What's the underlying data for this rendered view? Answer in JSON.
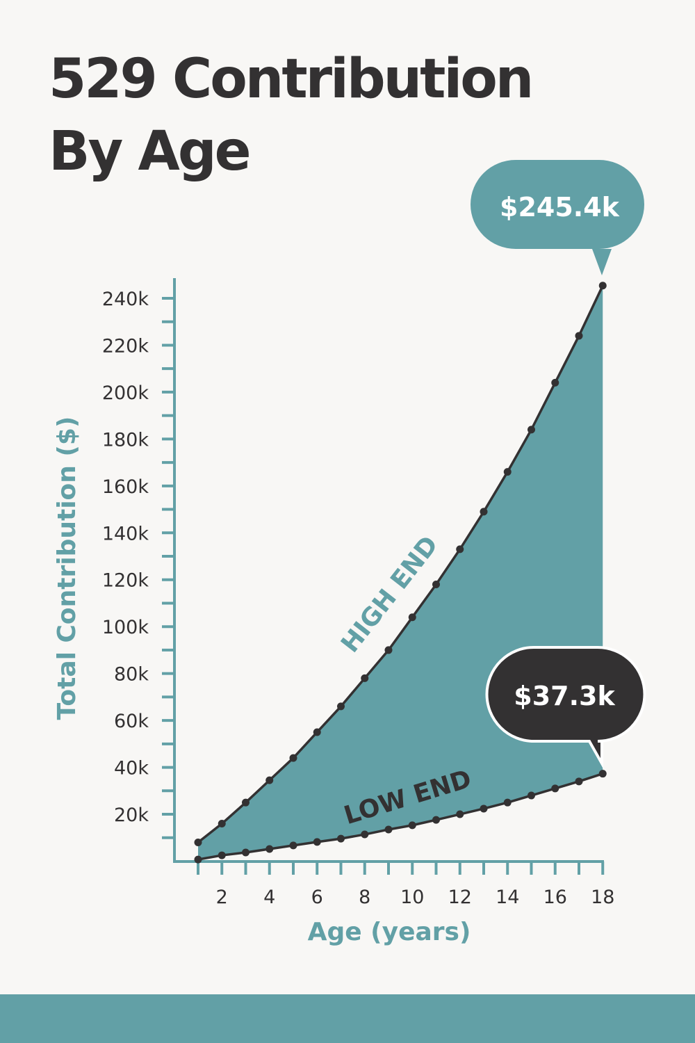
{
  "title": {
    "line1": "529 Contribution",
    "line2": "By Age"
  },
  "colors": {
    "background": "#f8f7f5",
    "teal": "#62a0a6",
    "dark": "#333132",
    "white": "#ffffff"
  },
  "callouts": {
    "high": "$245.4k",
    "low": "$37.3k"
  },
  "chart_data": {
    "type": "area",
    "title": "529 Contribution By Age",
    "xlabel": "Age (years)",
    "ylabel": "Total Contribution ($)",
    "x": [
      1,
      2,
      3,
      4,
      5,
      6,
      7,
      8,
      9,
      10,
      11,
      12,
      13,
      14,
      15,
      16,
      17,
      18
    ],
    "x_tick_labels": [
      "2",
      "4",
      "6",
      "8",
      "10",
      "12",
      "14",
      "16",
      "18"
    ],
    "x_ticks": [
      2,
      4,
      6,
      8,
      10,
      12,
      14,
      16,
      18
    ],
    "y_tick_labels": [
      "20k",
      "40k",
      "60k",
      "80k",
      "100k",
      "120k",
      "140k",
      "160k",
      "180k",
      "200k",
      "220k",
      "240k"
    ],
    "y_ticks": [
      20000,
      40000,
      60000,
      80000,
      100000,
      120000,
      140000,
      160000,
      180000,
      200000,
      220000,
      240000
    ],
    "ylim": [
      0,
      245400
    ],
    "xlim": [
      1,
      18
    ],
    "grid": false,
    "legend": "none (inline labels)",
    "series": [
      {
        "name": "HIGH END",
        "values": [
          8000,
          16000,
          25000,
          34500,
          44000,
          55000,
          66000,
          78000,
          90000,
          104000,
          118000,
          133000,
          149000,
          166000,
          184000,
          204000,
          224000,
          245400
        ]
      },
      {
        "name": "LOW END",
        "values": [
          700,
          2500,
          3700,
          5200,
          6700,
          8200,
          9600,
          11400,
          13500,
          15300,
          17600,
          20000,
          22400,
          25000,
          28000,
          31000,
          34000,
          37300
        ]
      }
    ],
    "annotations": [
      {
        "x": 18,
        "series": "HIGH END",
        "text": "$245.4k"
      },
      {
        "x": 18,
        "series": "LOW END",
        "text": "$37.3k"
      }
    ],
    "fill_between": "HIGH END and LOW END shaded teal"
  }
}
